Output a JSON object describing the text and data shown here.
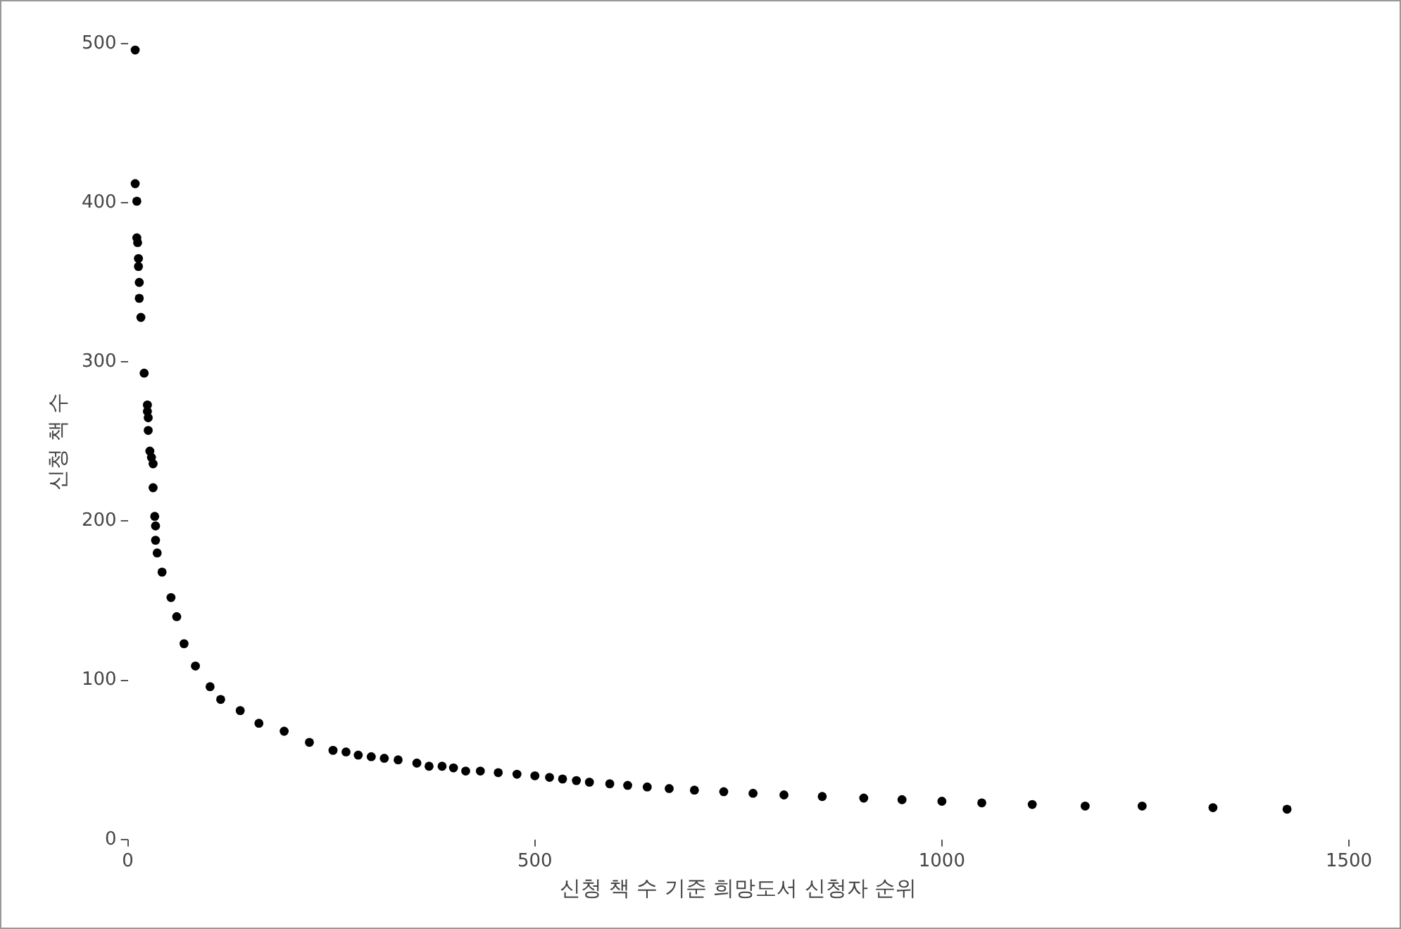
{
  "chart_data": {
    "type": "scatter",
    "xlabel": "신청 책 수 기준 희망도서 신청자 순위",
    "ylabel": "신청 책 수",
    "x": [
      9,
      9,
      11,
      11,
      12,
      13,
      13,
      14,
      14,
      16,
      20,
      24,
      24,
      25,
      25,
      27,
      29,
      31,
      31,
      33,
      34,
      34,
      36,
      42,
      53,
      60,
      69,
      83,
      101,
      114,
      138,
      161,
      192,
      223,
      252,
      268,
      283,
      299,
      315,
      332,
      355,
      370,
      386,
      400,
      415,
      433,
      455,
      478,
      500,
      518,
      534,
      551,
      567,
      592,
      614,
      638,
      665,
      696,
      732,
      768,
      806,
      853,
      904,
      951,
      1000,
      1049,
      1111,
      1176,
      1246,
      1333,
      1424
    ],
    "series": [
      {
        "color": "#000000",
        "values": [
          496,
          412,
          401,
          378,
          375,
          365,
          360,
          350,
          340,
          328,
          293,
          273,
          269,
          265,
          257,
          244,
          240,
          236,
          221,
          203,
          197,
          188,
          180,
          168,
          152,
          140,
          123,
          109,
          96,
          88,
          81,
          73,
          68,
          61,
          56,
          55,
          53,
          52,
          51,
          50,
          48,
          46,
          46,
          45,
          43,
          43,
          42,
          41,
          40,
          39,
          38,
          37,
          36,
          35,
          34,
          33,
          32,
          31,
          30,
          29,
          28,
          27,
          26,
          25,
          24,
          23,
          22,
          21,
          21,
          20,
          19
        ]
      }
    ],
    "xlim": [
      0,
      1500
    ],
    "ylim": [
      0,
      500
    ],
    "xticks": [
      0,
      500,
      1000,
      1500
    ],
    "yticks": [
      0,
      100,
      200,
      300,
      400,
      500
    ],
    "grid": false,
    "legend": false,
    "marker": "circle"
  }
}
